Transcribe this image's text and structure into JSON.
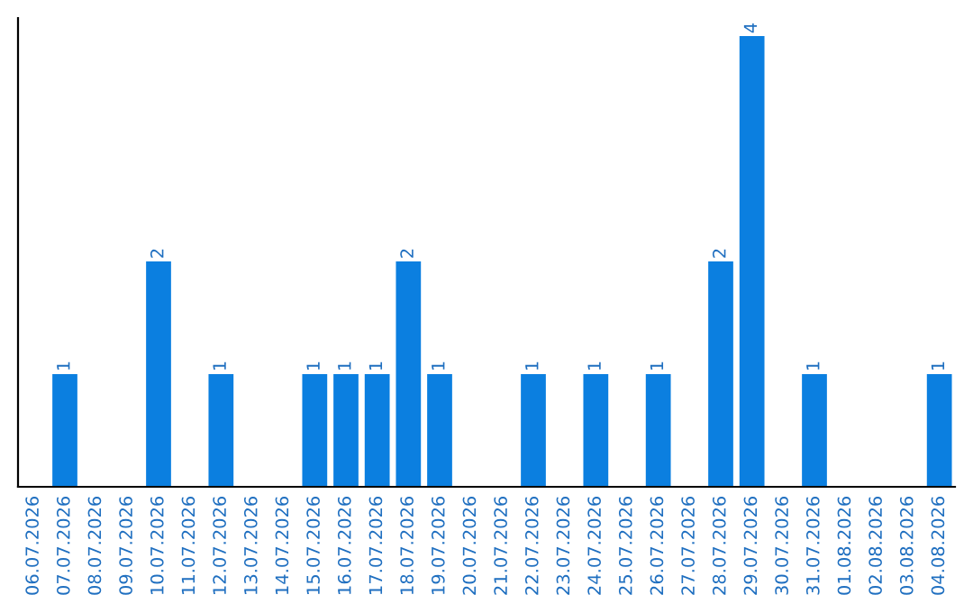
{
  "chart_data": {
    "type": "bar",
    "categories": [
      "06.07.2026",
      "07.07.2026",
      "08.07.2026",
      "09.07.2026",
      "10.07.2026",
      "11.07.2026",
      "12.07.2026",
      "13.07.2026",
      "14.07.2026",
      "15.07.2026",
      "16.07.2026",
      "17.07.2026",
      "18.07.2026",
      "19.07.2026",
      "20.07.2026",
      "21.07.2026",
      "22.07.2026",
      "23.07.2026",
      "24.07.2026",
      "25.07.2026",
      "26.07.2026",
      "27.07.2026",
      "28.07.2026",
      "29.07.2026",
      "30.07.2026",
      "31.07.2026",
      "01.08.2026",
      "02.08.2026",
      "03.08.2026",
      "04.08.2026"
    ],
    "values": [
      0,
      1,
      0,
      0,
      2,
      0,
      1,
      0,
      0,
      1,
      1,
      1,
      2,
      1,
      0,
      0,
      1,
      0,
      1,
      0,
      1,
      0,
      2,
      4,
      0,
      1,
      0,
      0,
      0,
      1
    ],
    "value_labels": [
      null,
      "1",
      null,
      null,
      "2",
      null,
      "1",
      null,
      null,
      "1",
      "1",
      "1",
      "2",
      "1",
      null,
      null,
      "1",
      null,
      "1",
      null,
      "1",
      null,
      "2",
      "4",
      null,
      "1",
      null,
      null,
      null,
      "1"
    ],
    "color": "#0b7fe0",
    "ylim": [
      0,
      4.16
    ],
    "tick_labels": "x",
    "grid": false,
    "legend": false
  }
}
